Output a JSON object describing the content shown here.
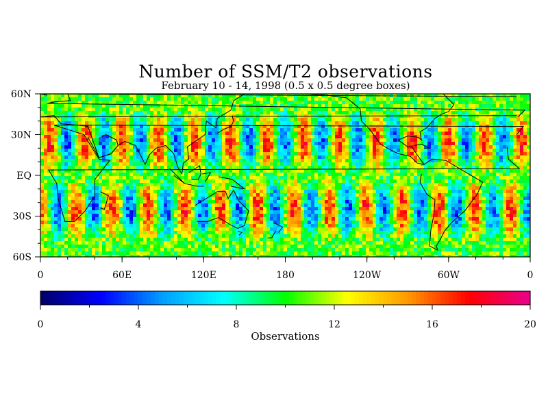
{
  "chart_data": {
    "type": "heatmap",
    "title": "Number of SSM/T2 observations",
    "subtitle": "February 10 - 14, 1998 (0.5 x 0.5 degree boxes)",
    "x_ticks": [
      "0",
      "60E",
      "120E",
      "180",
      "120W",
      "60W",
      "0"
    ],
    "y_ticks": [
      "60N",
      "30N",
      "EQ",
      "30S",
      "60S"
    ],
    "xlim": [
      0,
      360
    ],
    "ylim": [
      -60,
      60
    ],
    "colorbar": {
      "label": "Observations",
      "min": 0,
      "max": 20,
      "ticks": [
        "0",
        "4",
        "8",
        "12",
        "16",
        "20"
      ],
      "colors": [
        "#000066",
        "#0000ff",
        "#00a0ff",
        "#00ffff",
        "#00ff00",
        "#ffff00",
        "#ff9900",
        "#ff0000",
        "#e8008c"
      ]
    },
    "pattern": "alternating meridional stripes of high (red/orange, ~14-18) and low (blue, ~2-5) observation counts, shifted between northern and southern hemispheres; ~10-12 near equator and high latitudes"
  }
}
